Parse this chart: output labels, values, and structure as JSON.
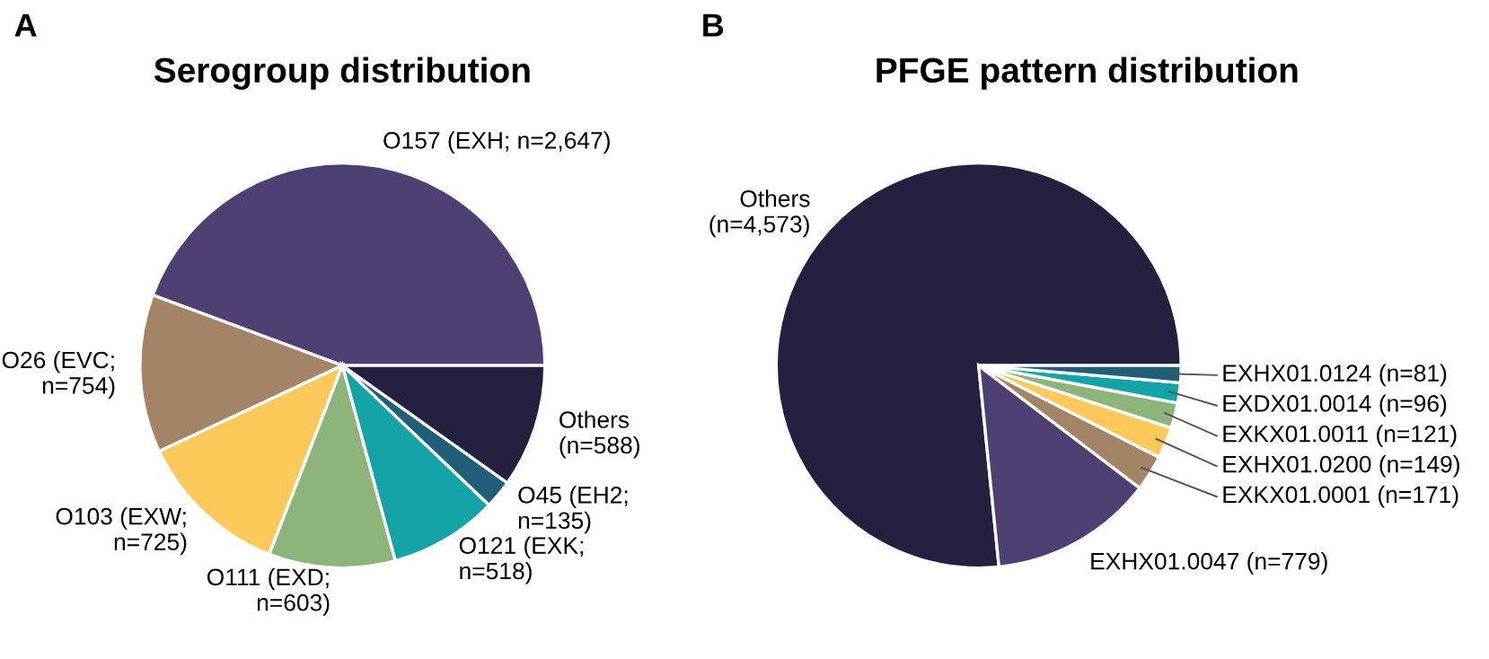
{
  "chart_data": [
    {
      "type": "pie",
      "title": "Serogroup distribution",
      "annotations": [
        "A"
      ],
      "categories": [
        "O157 (EXH; n=2,647)",
        "O26 (EVC;\nn=754)",
        "O103 (EXW;\nn=725)",
        "O111 (EXD;\nn=603)",
        "O121 (EXK;\nn=518)",
        "O45 (EH2;\nn=135)",
        "Others\n(n=588)"
      ],
      "values": [
        2647,
        754,
        725,
        603,
        518,
        135,
        588
      ],
      "colors": [
        "#4e4073",
        "#a48466",
        "#fdc95a",
        "#8db57b",
        "#14a3a6",
        "#215f78",
        "#23213f"
      ]
    },
    {
      "type": "pie",
      "title": "PFGE pattern distribution",
      "annotations": [
        "B"
      ],
      "categories": [
        "Others\n(n=4,573)",
        "EXHX01.0047 (n=779)",
        "EXKX01.0001 (n=171)",
        "EXHX01.0200 (n=149)",
        "EXKX01.0011 (n=121)",
        "EXDX01.0014 (n=96)",
        "EXHX01.0124 (n=81)"
      ],
      "values": [
        4573,
        779,
        171,
        149,
        121,
        96,
        81
      ],
      "colors": [
        "#23213f",
        "#4e4073",
        "#a48466",
        "#fdc95a",
        "#8db57b",
        "#14a3a6",
        "#215f78"
      ]
    }
  ]
}
